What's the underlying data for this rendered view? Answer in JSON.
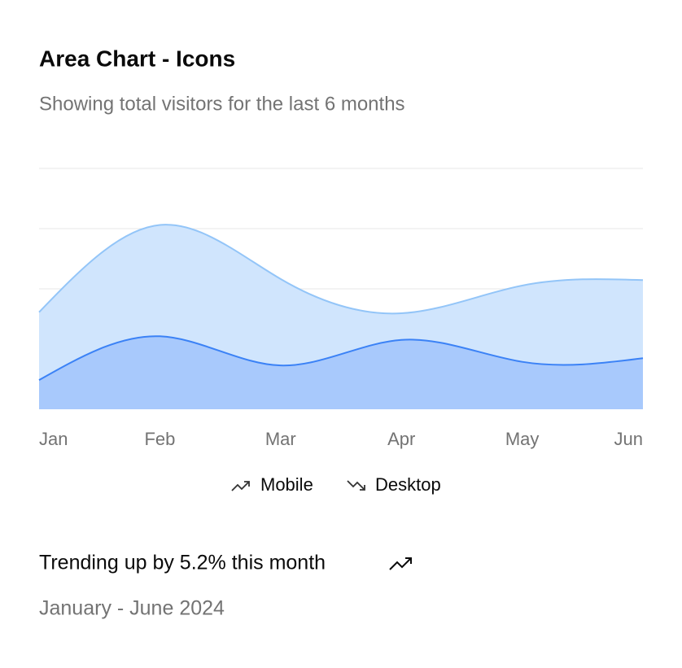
{
  "chart_data": {
    "type": "area",
    "title": "Area Chart - Icons",
    "subtitle": "Showing total visitors for the last 6 months",
    "categories": [
      "Jan",
      "Feb",
      "Mar",
      "Apr",
      "May",
      "Jun"
    ],
    "series": [
      {
        "name": "Mobile",
        "color": "#3b82f6",
        "fill": "#a8c9fc",
        "values": [
          80,
          200,
          120,
          190,
          130,
          140
        ]
      },
      {
        "name": "Desktop",
        "color": "#93c5f8",
        "fill": "#d0e5fd",
        "values": [
          186,
          305,
          237,
          73,
          209,
          214
        ]
      }
    ],
    "stacked": true,
    "ylim": [
      0,
      660
    ],
    "yticks": [
      0,
      165,
      330,
      495,
      660
    ],
    "grid": true,
    "footer": {
      "headline": "Trending up by 5.2% this month",
      "note": "January - June 2024"
    }
  }
}
